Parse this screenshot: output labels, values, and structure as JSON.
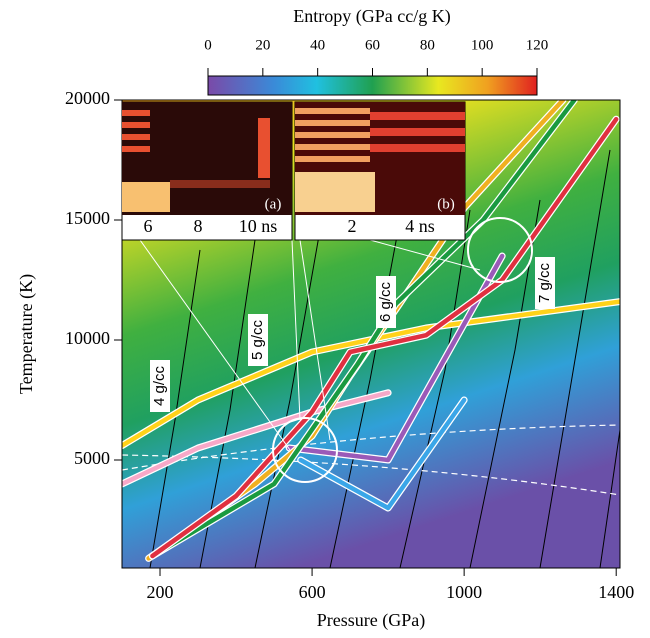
{
  "chart_data": {
    "type": "line",
    "x_label": "Pressure (GPa)",
    "y_label": "Temperature (K)",
    "xlim": [
      100,
      1410
    ],
    "ylim": [
      500,
      20000
    ],
    "xticks": [
      200,
      600,
      1000,
      1400
    ],
    "yticks": [
      5000,
      10000,
      15000,
      20000
    ],
    "series": [
      {
        "color": "#ffd21a",
        "x": [
          100,
          300,
          600,
          900,
          1410
        ],
        "values": [
          5600,
          7500,
          9500,
          10500,
          11600
        ]
      },
      {
        "color": "#f7a8c8",
        "x": [
          100,
          300,
          600,
          800
        ],
        "values": [
          4000,
          5500,
          7000,
          7800
        ]
      },
      {
        "color": "#3aa6e8",
        "x": [
          570,
          800,
          1000
        ],
        "values": [
          5000,
          3000,
          7500
        ]
      },
      {
        "color": "#9a5ab8",
        "x": [
          540,
          800,
          1100
        ],
        "values": [
          5500,
          5000,
          13500
        ]
      },
      {
        "color": "#f0b020",
        "x": [
          170,
          450,
          600,
          700,
          830,
          1000,
          1260
        ],
        "values": [
          900,
          4000,
          6000,
          8500,
          11500,
          15500,
          20000
        ]
      },
      {
        "color": "#1a9a40",
        "x": [
          180,
          500,
          720,
          820,
          1050,
          1290
        ],
        "values": [
          1000,
          4000,
          9000,
          11500,
          15000,
          20000
        ]
      },
      {
        "color": "#e03040",
        "x": [
          180,
          400,
          600,
          700,
          900,
          1100,
          1400
        ],
        "values": [
          1000,
          3500,
          7000,
          9500,
          10200,
          12500,
          19200
        ]
      }
    ],
    "annotations": [
      "4 g/cc",
      "5 g/cc",
      "6 g/cc",
      "7 g/cc"
    ],
    "insets": [
      {
        "label": "(a)",
        "tick_labels": [
          "6",
          "8",
          "10 ns"
        ]
      },
      {
        "label": "(b)",
        "tick_labels": [
          "2",
          "4 ns"
        ]
      }
    ],
    "colorbar": {
      "label": "Entropy (GPa cc/g K)",
      "lim": [
        0,
        120
      ],
      "ticks": [
        0,
        20,
        40,
        60,
        80,
        100,
        120
      ]
    }
  }
}
